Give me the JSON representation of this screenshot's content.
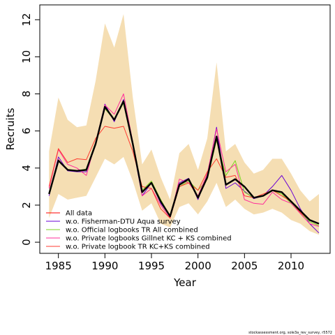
{
  "chart_data": {
    "type": "line",
    "title": "",
    "xlabel": "Year",
    "ylabel": "Recruits",
    "xlim": [
      1983.0,
      2014.2
    ],
    "ylim": [
      -0.6,
      12.8
    ],
    "x_ticks": [
      1985,
      1990,
      1995,
      2000,
      2005,
      2010
    ],
    "y_ticks": [
      0,
      2,
      4,
      6,
      8,
      10,
      12
    ],
    "grid": false,
    "legend_position": "bottom-left",
    "x": [
      1984,
      1985,
      1986,
      1987,
      1988,
      1989,
      1990,
      1991,
      1992,
      1993,
      1994,
      1995,
      1996,
      1997,
      1998,
      1999,
      2000,
      2001,
      2002,
      2003,
      2004,
      2005,
      2006,
      2007,
      2008,
      2009,
      2010,
      2011,
      2012,
      2013
    ],
    "band": {
      "color": "#f5deb3",
      "upper": [
        4.9,
        7.8,
        6.6,
        6.2,
        6.3,
        8.7,
        11.8,
        10.5,
        12.3,
        7.8,
        4.2,
        5.0,
        3.5,
        2.3,
        4.8,
        5.3,
        3.9,
        5.6,
        9.7,
        4.9,
        5.3,
        4.3,
        3.7,
        3.9,
        4.5,
        4.5,
        3.7,
        2.8,
        2.2,
        2.6
      ],
      "lower": [
        1.3,
        2.6,
        2.3,
        2.4,
        2.5,
        3.5,
        4.5,
        4.2,
        4.6,
        3.3,
        1.7,
        2.1,
        1.0,
        0.8,
        1.9,
        2.1,
        1.5,
        2.2,
        3.2,
        1.9,
        2.3,
        1.8,
        1.5,
        1.6,
        1.8,
        1.6,
        1.2,
        1.0,
        0.6,
        0.4
      ]
    },
    "series": [
      {
        "name": "All data",
        "color": "#000000",
        "width": 2.4,
        "in_legend": false,
        "values": [
          2.6,
          4.4,
          3.9,
          3.85,
          3.9,
          5.3,
          7.3,
          6.6,
          7.6,
          5.3,
          2.7,
          3.2,
          2.2,
          1.4,
          3.1,
          3.4,
          2.4,
          3.5,
          5.7,
          3.1,
          3.4,
          3.0,
          2.4,
          2.5,
          2.8,
          2.7,
          2.2,
          1.7,
          1.2,
          1.0
        ]
      },
      {
        "name": "All data",
        "color": "#ff0000",
        "width": 1,
        "values": [
          2.6,
          4.45,
          3.9,
          3.85,
          3.9,
          5.3,
          7.3,
          6.6,
          7.6,
          5.3,
          2.7,
          3.2,
          2.2,
          1.4,
          3.1,
          3.4,
          2.4,
          3.5,
          5.7,
          3.1,
          3.4,
          3.0,
          2.4,
          2.5,
          2.8,
          2.7,
          2.2,
          1.7,
          1.2,
          1.0
        ]
      },
      {
        "name": "w.o. Fisherman-DTU Aqua survey",
        "color": "#6a00d4",
        "width": 1,
        "values": [
          2.5,
          4.6,
          3.85,
          3.8,
          3.8,
          5.3,
          7.45,
          6.5,
          7.7,
          5.2,
          2.5,
          3.2,
          2.1,
          1.4,
          3.2,
          3.45,
          2.3,
          3.6,
          6.2,
          2.9,
          3.2,
          2.75,
          2.35,
          2.5,
          3.0,
          3.6,
          2.8,
          1.8,
          1.0,
          0.5
        ]
      },
      {
        "name": "w.o. Official logbooks TR All combined",
        "color": "#7ed321",
        "width": 1,
        "values": [
          2.6,
          4.4,
          3.9,
          3.85,
          3.95,
          5.4,
          7.2,
          6.6,
          7.5,
          5.4,
          2.8,
          3.3,
          2.3,
          1.4,
          3.0,
          3.3,
          2.8,
          3.4,
          5.5,
          3.6,
          4.4,
          2.7,
          2.4,
          2.5,
          2.8,
          2.6,
          2.1,
          1.6,
          1.1,
          0.9
        ]
      },
      {
        "name": "w.o. Private logbooks Gillnet KC + KS combined",
        "color": "#ff2d9a",
        "width": 1,
        "values": [
          2.9,
          5.0,
          4.2,
          4.0,
          3.6,
          5.4,
          7.4,
          6.9,
          8.0,
          5.4,
          2.5,
          2.9,
          2.0,
          1.3,
          3.4,
          3.2,
          2.5,
          3.7,
          6.1,
          3.8,
          4.2,
          2.3,
          2.1,
          2.05,
          2.7,
          2.3,
          2.1,
          1.55,
          1.0,
          0.85
        ]
      },
      {
        "name": "w.o. Private logbook TR KC+KS combined",
        "color": "#ff3b30",
        "width": 1,
        "values": [
          3.0,
          5.05,
          4.3,
          4.5,
          4.45,
          5.6,
          6.25,
          6.15,
          6.25,
          4.9,
          3.0,
          2.9,
          1.8,
          1.3,
          3.0,
          3.2,
          2.8,
          3.8,
          4.5,
          3.5,
          3.6,
          2.5,
          2.4,
          2.6,
          2.8,
          2.5,
          2.2,
          1.6,
          1.2,
          1.0
        ]
      }
    ]
  },
  "footer_note": "stockassessment.org, sole3a_rev_survey, r5572"
}
